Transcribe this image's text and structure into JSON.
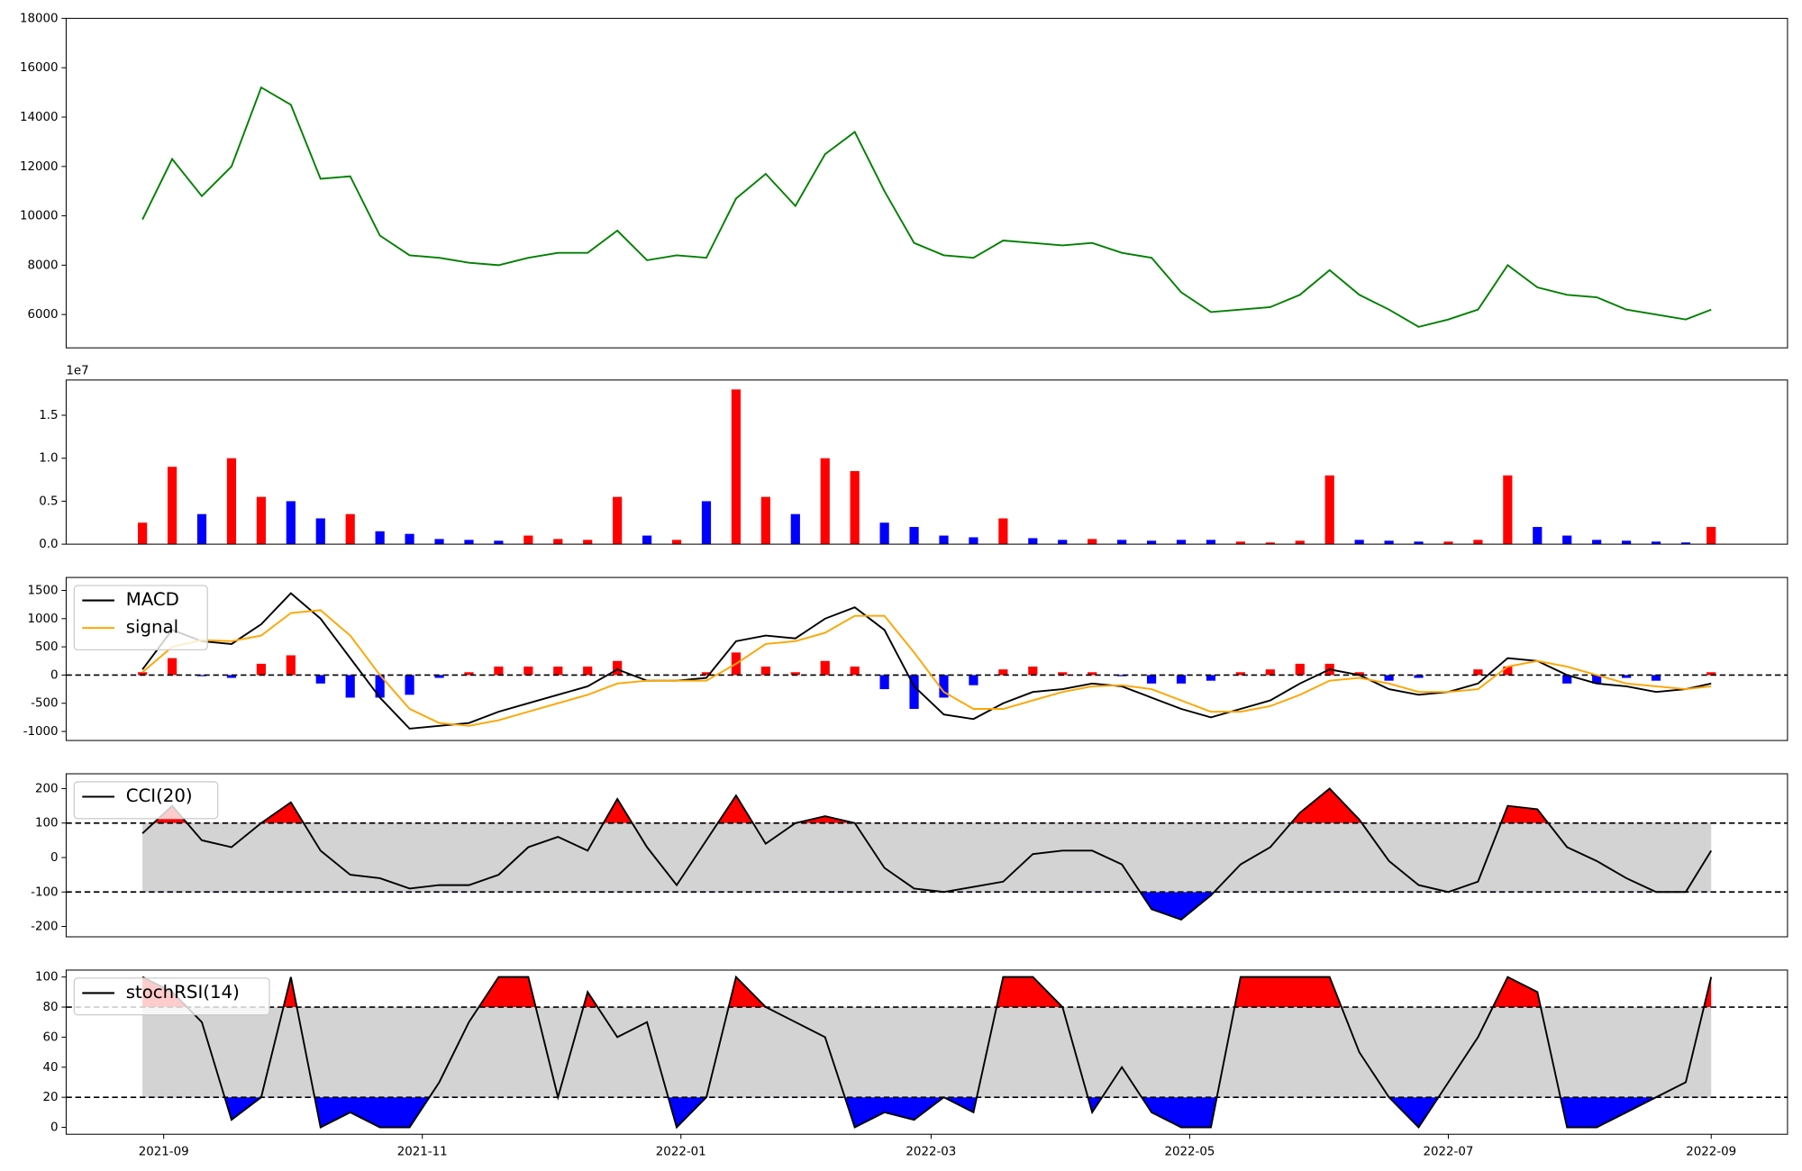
{
  "chart_data": {
    "type": "stock-panels",
    "x": [
      "2021-08-27",
      "2021-09-03",
      "2021-09-10",
      "2021-09-17",
      "2021-09-24",
      "2021-10-01",
      "2021-10-08",
      "2021-10-15",
      "2021-10-22",
      "2021-10-29",
      "2021-11-05",
      "2021-11-12",
      "2021-11-19",
      "2021-11-26",
      "2021-12-03",
      "2021-12-10",
      "2021-12-17",
      "2021-12-24",
      "2021-12-31",
      "2022-01-07",
      "2022-01-14",
      "2022-01-21",
      "2022-01-28",
      "2022-02-04",
      "2022-02-11",
      "2022-02-18",
      "2022-02-25",
      "2022-03-04",
      "2022-03-11",
      "2022-03-18",
      "2022-03-25",
      "2022-04-01",
      "2022-04-08",
      "2022-04-15",
      "2022-04-22",
      "2022-04-29",
      "2022-05-06",
      "2022-05-13",
      "2022-05-20",
      "2022-05-27",
      "2022-06-03",
      "2022-06-10",
      "2022-06-17",
      "2022-06-24",
      "2022-07-01",
      "2022-07-08",
      "2022-07-15",
      "2022-07-22",
      "2022-07-29",
      "2022-08-05",
      "2022-08-12",
      "2022-08-19",
      "2022-08-26",
      "2022-09-01"
    ],
    "xlim": [
      "2021-08-09",
      "2022-09-19"
    ],
    "xticks": [
      {
        "value": "2021-09-01",
        "label": "2021-09"
      },
      {
        "value": "2021-11-01",
        "label": "2021-11"
      },
      {
        "value": "2022-01-01",
        "label": "2022-01"
      },
      {
        "value": "2022-03-01",
        "label": "2022-03"
      },
      {
        "value": "2022-05-01",
        "label": "2022-05"
      },
      {
        "value": "2022-07-01",
        "label": "2022-07"
      },
      {
        "value": "2022-09-01",
        "label": "2022-09"
      }
    ],
    "panels": [
      {
        "type": "line",
        "ylim": [
          4650,
          18000
        ],
        "yticks": [
          6000,
          8000,
          10000,
          12000,
          14000,
          16000,
          18000
        ],
        "series": [
          {
            "color": "green",
            "values": [
              9850,
              12300,
              10800,
              12000,
              15200,
              14500,
              11500,
              11600,
              9200,
              8400,
              8300,
              8100,
              8000,
              8300,
              8500,
              8500,
              9400,
              8200,
              8400,
              8300,
              10700,
              11700,
              10400,
              12500,
              13400,
              11000,
              8900,
              8400,
              8300,
              9000,
              8900,
              8800,
              8900,
              8500,
              8300,
              6900,
              6100,
              6200,
              6300,
              6800,
              7800,
              6800,
              6200,
              5500,
              5800,
              6200,
              8000,
              7100,
              6800,
              6700,
              6200,
              6000,
              5800,
              6200
            ]
          }
        ]
      },
      {
        "type": "volume",
        "offset_label": "1e7",
        "ylim": [
          0,
          1.91
        ],
        "yticks": [
          {
            "value": 0,
            "label": "0.0"
          },
          0.5,
          {
            "value": 1,
            "label": "1.0"
          },
          1.5
        ],
        "up_color": "red",
        "down_color": "blue",
        "series": [
          {
            "values": [
              0.25,
              0.9,
              0.35,
              1.0,
              0.55,
              0.5,
              0.3,
              0.35,
              0.15,
              0.12,
              0.06,
              0.05,
              0.04,
              0.1,
              0.06,
              0.05,
              0.55,
              0.1,
              0.05,
              0.5,
              1.8,
              0.55,
              0.35,
              1.0,
              0.85,
              0.25,
              0.2,
              0.1,
              0.08,
              0.3,
              0.07,
              0.05,
              0.06,
              0.05,
              0.04,
              0.05,
              0.05,
              0.03,
              0.02,
              0.04,
              0.8,
              0.05,
              0.04,
              0.03,
              0.03,
              0.05,
              0.8,
              0.2,
              0.1,
              0.05,
              0.04,
              0.03,
              0.02,
              0.2
            ]
          }
        ]
      },
      {
        "type": "macd",
        "ylim": [
          -1160,
          1730
        ],
        "yticks": [
          -1000,
          -500,
          0,
          500,
          1000,
          1500
        ],
        "reference_lines": [
          0
        ],
        "legend": "upper left",
        "series": [
          {
            "name": "MACD",
            "color": "black",
            "values": [
              100,
              800,
              600,
              550,
              900,
              1450,
              1000,
              300,
              -400,
              -950,
              -900,
              -850,
              -650,
              -500,
              -350,
              -200,
              100,
              -100,
              -100,
              -50,
              600,
              700,
              650,
              1000,
              1200,
              800,
              -200,
              -700,
              -780,
              -500,
              -300,
              -250,
              -150,
              -200,
              -400,
              -600,
              -750,
              -600,
              -450,
              -150,
              100,
              0,
              -250,
              -350,
              -300,
              -150,
              300,
              250,
              0,
              -150,
              -200,
              -300,
              -250,
              -150
            ]
          },
          {
            "name": "signal",
            "color": "orange",
            "values": [
              50,
              500,
              620,
              600,
              700,
              1100,
              1150,
              700,
              0,
              -600,
              -850,
              -900,
              -800,
              -650,
              -500,
              -350,
              -150,
              -100,
              -100,
              -100,
              200,
              550,
              600,
              750,
              1050,
              1050,
              400,
              -300,
              -600,
              -600,
              -450,
              -300,
              -200,
              -180,
              -250,
              -450,
              -650,
              -650,
              -550,
              -350,
              -100,
              -50,
              -150,
              -300,
              -300,
              -250,
              150,
              250,
              150,
              0,
              -150,
              -200,
              -250,
              -200
            ]
          }
        ],
        "histogram": {
          "up_color": "red",
          "down_color": "blue",
          "values": [
            50,
            300,
            -20,
            -50,
            200,
            350,
            -150,
            -400,
            -400,
            -350,
            -50,
            50,
            150,
            150,
            150,
            150,
            250,
            0,
            0,
            50,
            400,
            150,
            50,
            250,
            150,
            -250,
            -600,
            -400,
            -180,
            100,
            150,
            50,
            50,
            -20,
            -150,
            -150,
            -100,
            50,
            100,
            200,
            200,
            50,
            -100,
            -50,
            0,
            100,
            150,
            0,
            -150,
            -150,
            -50,
            -100,
            0,
            50
          ]
        }
      },
      {
        "type": "oscillator",
        "ylim": [
          -230,
          243
        ],
        "yticks": [
          -200,
          -100,
          0,
          100,
          200
        ],
        "thresholds": [
          -100,
          100
        ],
        "legend": "upper left",
        "band_color": "lightgray",
        "over_color": "red",
        "under_color": "blue",
        "series": [
          {
            "name": "CCI(20)",
            "color": "black",
            "values": [
              70,
              150,
              50,
              30,
              100,
              160,
              20,
              -50,
              -60,
              -90,
              -80,
              -80,
              -50,
              30,
              60,
              20,
              170,
              30,
              -80,
              50,
              180,
              40,
              100,
              120,
              100,
              -30,
              -90,
              -100,
              -85,
              -70,
              10,
              20,
              20,
              -20,
              -150,
              -180,
              -110,
              -20,
              30,
              130,
              200,
              110,
              -10,
              -80,
              -100,
              -70,
              150,
              140,
              30,
              -10,
              -60,
              -100,
              -100,
              20
            ]
          }
        ]
      },
      {
        "type": "oscillator",
        "ylim": [
          -4.6,
          104.6
        ],
        "yticks": [
          0,
          20,
          40,
          60,
          80,
          100
        ],
        "thresholds": [
          20,
          80
        ],
        "legend": "upper left",
        "band_color": "lightgray",
        "over_color": "red",
        "under_color": "blue",
        "series": [
          {
            "name": "stochRSI(14)",
            "color": "black",
            "values": [
              100,
              90,
              70,
              5,
              20,
              100,
              0,
              10,
              0,
              0,
              30,
              70,
              100,
              100,
              20,
              90,
              60,
              70,
              0,
              20,
              100,
              80,
              70,
              60,
              0,
              10,
              5,
              20,
              10,
              100,
              100,
              80,
              10,
              40,
              10,
              0,
              0,
              100,
              100,
              100,
              100,
              50,
              20,
              0,
              30,
              60,
              100,
              90,
              0,
              0,
              10,
              20,
              30,
              100
            ]
          }
        ]
      }
    ]
  }
}
